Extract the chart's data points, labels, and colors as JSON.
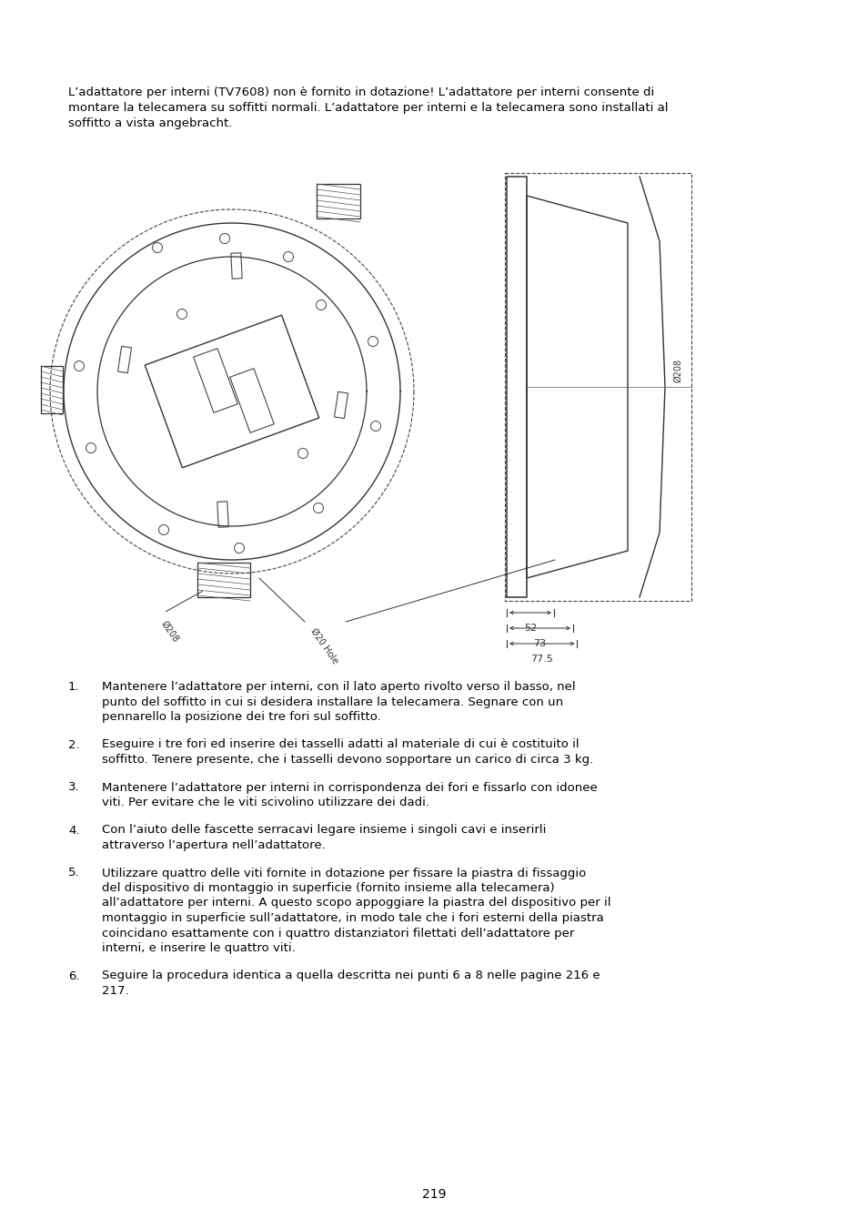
{
  "bg_color": "#ffffff",
  "page_number": "219",
  "intro_lines": [
    "L’adattatore per interni (TV7608) non è fornito in dotazione! L’adattatore per interni consente di",
    "montare la telecamera su soffitti normali. L’adattatore per interni e la telecamera sono installati al",
    "soffitto a vista angebracht."
  ],
  "items": [
    {
      "num": "1.",
      "text": "Mantenere l’adattatore per interni, con il lato aperto rivolto verso il basso, nel punto del soffitto in cui si desidera installare la telecamera. Segnare con un pennarello la posizione dei tre fori sul soffitto."
    },
    {
      "num": "2.",
      "text": "Eseguire i tre fori ed inserire dei tasselli adatti al materiale di cui è costituito il soffitto. Tenere presente, che i tasselli devono sopportare un carico di circa 3 kg."
    },
    {
      "num": "3.",
      "text": "Mantenere l’adattatore per interni in corrispondenza dei fori e fissarlo con idonee viti. Per evitare che le viti scivolino utilizzare dei dadi."
    },
    {
      "num": "4.",
      "text": "Con l’aiuto delle fascette serracavi legare insieme i singoli cavi e inserirli attraverso l’apertura nell’adattatore."
    },
    {
      "num": "5.",
      "text": "Utilizzare quattro delle viti fornite in dotazione per fissare la piastra di fissaggio del dispositivo di montaggio in superficie (fornito insieme alla telecamera) all’adattatore per interni. A questo scopo appoggiare la piastra del dispositivo per il montaggio in superficie sull’adattatore, in modo tale che i fori esterni della piastra coincidano esattamente con i quattro distanziatori filettati dell’adattatore per interni, e inserire le quattro viti."
    },
    {
      "num": "6.",
      "text": "Seguire la procedura identica a quella descritta nei punti 6 a 8 nelle pagine 216 e 217."
    }
  ],
  "dim_52": "52",
  "dim_73": "73",
  "dim_775": "77.5",
  "dim_208": "Ø208",
  "label_hole": "Ø20 Hole",
  "label_208b": "Ø208"
}
